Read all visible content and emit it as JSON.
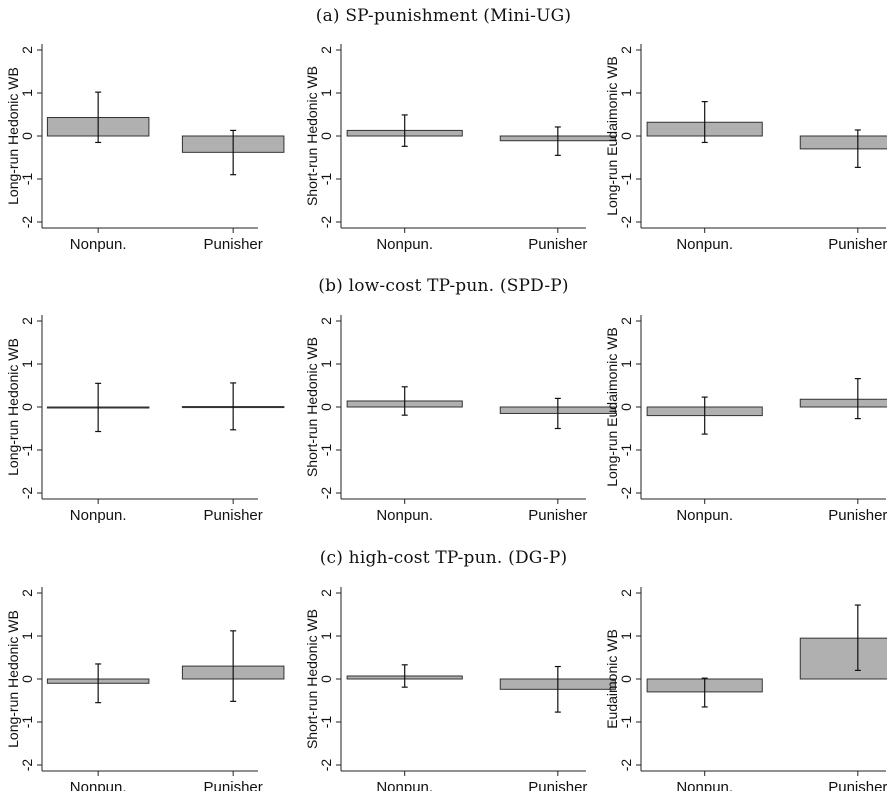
{
  "rows": [
    {
      "title": "(a) SP-punishment (Mini-UG)"
    },
    {
      "title": "(b) low-cost TP-pun. (SPD-P)"
    },
    {
      "title": "(c) high-cost TP-pun. (DG-P)"
    }
  ],
  "chart_data": [
    {
      "type": "bar",
      "categories": [
        "Nonpun.",
        "Punisher"
      ],
      "ylabel": "Long-run Hedonic WB",
      "ylim": [
        -2,
        2
      ],
      "yticks": [
        -2,
        -1,
        0,
        1,
        2
      ],
      "series": [
        {
          "values": [
            0.43,
            -0.38
          ],
          "ci_low": [
            -0.15,
            -0.9
          ],
          "ci_high": [
            1.02,
            0.13
          ]
        }
      ]
    },
    {
      "type": "bar",
      "categories": [
        "Nonpun.",
        "Punisher"
      ],
      "ylabel": "Short-run Hedonic WB",
      "ylim": [
        -2,
        2
      ],
      "yticks": [
        -2,
        -1,
        0,
        1,
        2
      ],
      "series": [
        {
          "values": [
            0.13,
            -0.11
          ],
          "ci_low": [
            -0.24,
            -0.45
          ],
          "ci_high": [
            0.49,
            0.21
          ]
        }
      ]
    },
    {
      "type": "bar",
      "categories": [
        "Nonpun.",
        "Punisher"
      ],
      "ylabel": "Long-run Eudaimonic WB",
      "ylim": [
        -2,
        2
      ],
      "yticks": [
        -2,
        -1,
        0,
        1,
        2
      ],
      "series": [
        {
          "values": [
            0.32,
            -0.3
          ],
          "ci_low": [
            -0.15,
            -0.73
          ],
          "ci_high": [
            0.8,
            0.14
          ]
        }
      ]
    },
    {
      "type": "bar",
      "categories": [
        "Nonpun.",
        "Punisher"
      ],
      "ylabel": "Long-run Hedonic WB",
      "ylim": [
        -2,
        2
      ],
      "yticks": [
        -2,
        -1,
        0,
        1,
        2
      ],
      "series": [
        {
          "values": [
            0.0,
            0.01
          ],
          "ci_low": [
            -0.57,
            -0.53
          ],
          "ci_high": [
            0.55,
            0.56
          ]
        }
      ]
    },
    {
      "type": "bar",
      "categories": [
        "Nonpun.",
        "Punisher"
      ],
      "ylabel": "Short-run Hedonic WB",
      "ylim": [
        -2,
        2
      ],
      "yticks": [
        -2,
        -1,
        0,
        1,
        2
      ],
      "series": [
        {
          "values": [
            0.14,
            -0.15
          ],
          "ci_low": [
            -0.19,
            -0.5
          ],
          "ci_high": [
            0.47,
            0.2
          ]
        }
      ]
    },
    {
      "type": "bar",
      "categories": [
        "Nonpun.",
        "Punisher"
      ],
      "ylabel": "Long-run Eudaimonic WB",
      "ylim": [
        -2,
        2
      ],
      "yticks": [
        -2,
        -1,
        0,
        1,
        2
      ],
      "series": [
        {
          "values": [
            -0.2,
            0.18
          ],
          "ci_low": [
            -0.63,
            -0.27
          ],
          "ci_high": [
            0.23,
            0.66
          ]
        }
      ]
    },
    {
      "type": "bar",
      "categories": [
        "Nonpun.",
        "Punisher"
      ],
      "ylabel": "Long-run Hedonic WB",
      "ylim": [
        -2,
        2
      ],
      "yticks": [
        -2,
        -1,
        0,
        1,
        2
      ],
      "series": [
        {
          "values": [
            -0.1,
            0.3
          ],
          "ci_low": [
            -0.55,
            -0.52
          ],
          "ci_high": [
            0.35,
            1.12
          ]
        }
      ]
    },
    {
      "type": "bar",
      "categories": [
        "Nonpun.",
        "Punisher"
      ],
      "ylabel": "Short-run Hedonic WB",
      "ylim": [
        -2,
        2
      ],
      "yticks": [
        -2,
        -1,
        0,
        1,
        2
      ],
      "series": [
        {
          "values": [
            0.07,
            -0.24
          ],
          "ci_low": [
            -0.19,
            -0.77
          ],
          "ci_high": [
            0.33,
            0.29
          ]
        }
      ]
    },
    {
      "type": "bar",
      "categories": [
        "Nonpun.",
        "Punisher"
      ],
      "ylabel": "Eudaimonic WB",
      "ylim": [
        -2,
        2
      ],
      "yticks": [
        -2,
        -1,
        0,
        1,
        2
      ],
      "series": [
        {
          "values": [
            -0.3,
            0.95
          ],
          "ci_low": [
            -0.65,
            0.2
          ],
          "ci_high": [
            0.02,
            1.72
          ]
        }
      ]
    }
  ],
  "colors": {
    "bar": "#b0b0b0",
    "bar_edge": "#333333",
    "error": "#111111",
    "axis": "#222222"
  }
}
